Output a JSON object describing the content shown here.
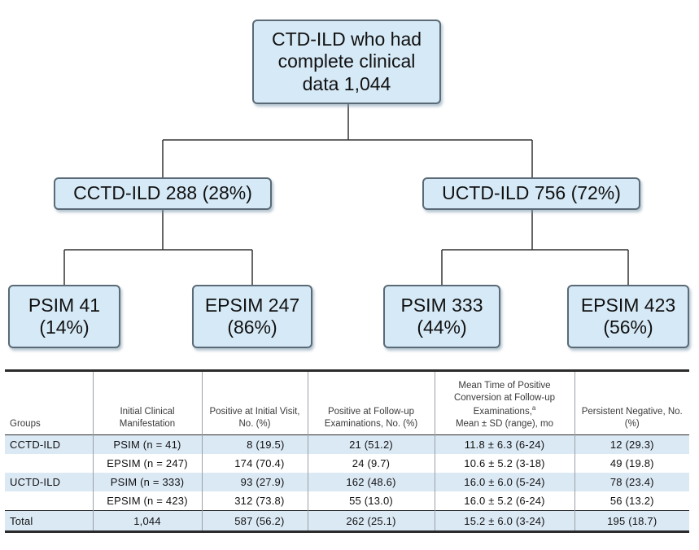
{
  "flowchart": {
    "root": "CTD-ILD who had complete clinical data 1,044",
    "cctd": "CCTD-ILD 288 (28%)",
    "uctd": "UCTD-ILD 756 (72%)",
    "cctd_psim": "PSIM 41 (14%)",
    "cctd_epsim": "EPSIM 247 (86%)",
    "uctd_psim": "PSIM 333 (44%)",
    "uctd_epsim": "EPSIM 423 (56%)"
  },
  "table": {
    "headers": [
      "Groups",
      "Initial Clinical Manifestation",
      "Positive at Initial Visit, No. (%)",
      "Positive at Follow-up Examinations, No. (%)",
      "Mean Time of Positive Conversion at Follow-up Examinations,",
      "a",
      "Mean ± SD (range), mo",
      "Persistent Negative, No. (%)"
    ],
    "rows": [
      {
        "group": "CCTD-ILD",
        "manifestation": "PSIM (n = 41)",
        "initial": "8 (19.5)",
        "followup": "21 (51.2)",
        "mean_time": "11.8 ± 6.3 (6-24)",
        "negative": "12 (29.3)"
      },
      {
        "group": "",
        "manifestation": "EPSIM (n = 247)",
        "initial": "174 (70.4)",
        "followup": "24 (9.7)",
        "mean_time": "10.6 ± 5.2 (3-18)",
        "negative": "49 (19.8)"
      },
      {
        "group": "UCTD-ILD",
        "manifestation": "PSIM (n = 333)",
        "initial": "93 (27.9)",
        "followup": "162 (48.6)",
        "mean_time": "16.0 ± 6.0 (5-24)",
        "negative": "78 (23.4)"
      },
      {
        "group": "",
        "manifestation": "EPSIM (n = 423)",
        "initial": "312 (73.8)",
        "followup": "55 (13.0)",
        "mean_time": "16.0 ± 5.2 (6-24)",
        "negative": "56 (13.2)"
      },
      {
        "group": "Total",
        "manifestation": "1,044",
        "initial": "587 (56.2)",
        "followup": "262 (25.1)",
        "mean_time": "15.2 ± 6.0 (3-24)",
        "negative": "195 (18.7)"
      }
    ]
  },
  "colors": {
    "box_fill": "#d6e9f6",
    "box_border": "#5a6a76",
    "row_shade": "#dbe9f5",
    "connector": "#333333"
  }
}
